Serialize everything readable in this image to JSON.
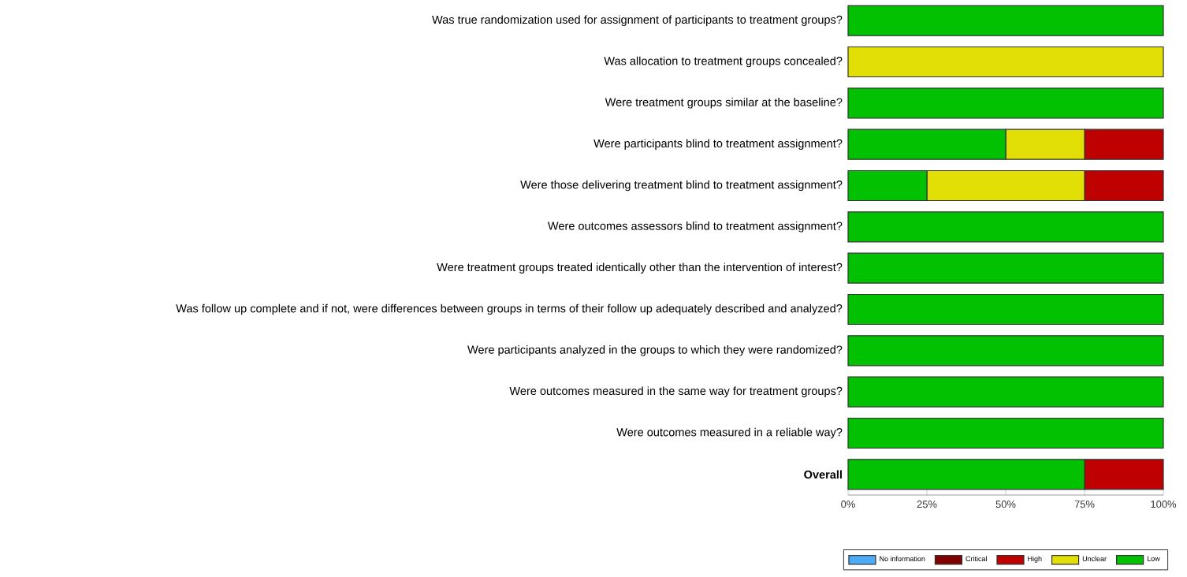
{
  "chart_data": {
    "type": "bar",
    "orientation": "horizontal",
    "stacked": true,
    "legend": "bottom",
    "categories": [
      "Was true randomization used for assignment of participants to treatment groups?",
      "Was allocation to treatment groups concealed?",
      "Were treatment groups similar at the baseline?",
      "Were participants blind to treatment assignment?",
      "Were those delivering treatment blind to treatment assignment?",
      "Were outcomes assessors blind to treatment assignment?",
      "Were treatment groups treated identically other than the intervention of interest?",
      "Was follow up complete and if not, were differences between groups in terms of their follow up adequately described and analyzed?",
      "Were participants analyzed in the groups to which they were randomized?",
      "Were outcomes measured in the same way for treatment groups?",
      "Were outcomes measured in a reliable way?",
      "**Overall**"
    ],
    "series": [
      {
        "name": "Low",
        "color": "#02c100",
        "values": [
          100,
          0,
          100,
          50,
          25,
          100,
          100,
          100,
          100,
          100,
          100,
          75
        ]
      },
      {
        "name": "Unclear",
        "color": "#e2df07",
        "values": [
          0,
          100,
          0,
          25,
          50,
          0,
          0,
          0,
          0,
          0,
          0,
          0
        ]
      },
      {
        "name": "High",
        "color": "#bf0000",
        "values": [
          0,
          0,
          0,
          25,
          25,
          0,
          0,
          0,
          0,
          0,
          0,
          25
        ]
      },
      {
        "name": "Critical",
        "color": "#820000",
        "values": [
          0,
          0,
          0,
          0,
          0,
          0,
          0,
          0,
          0,
          0,
          0,
          0
        ]
      },
      {
        "name": "No information",
        "color": "#4eabf8",
        "values": [
          0,
          0,
          0,
          0,
          0,
          0,
          0,
          0,
          0,
          0,
          0,
          0
        ]
      }
    ],
    "xlim": [
      0,
      100
    ],
    "xticks": [
      {
        "value": 0,
        "label": "0%"
      },
      {
        "value": 25,
        "label": "25%"
      },
      {
        "value": 50,
        "label": "50%"
      },
      {
        "value": 75,
        "label": "75%"
      },
      {
        "value": 100,
        "label": "100%"
      }
    ]
  }
}
